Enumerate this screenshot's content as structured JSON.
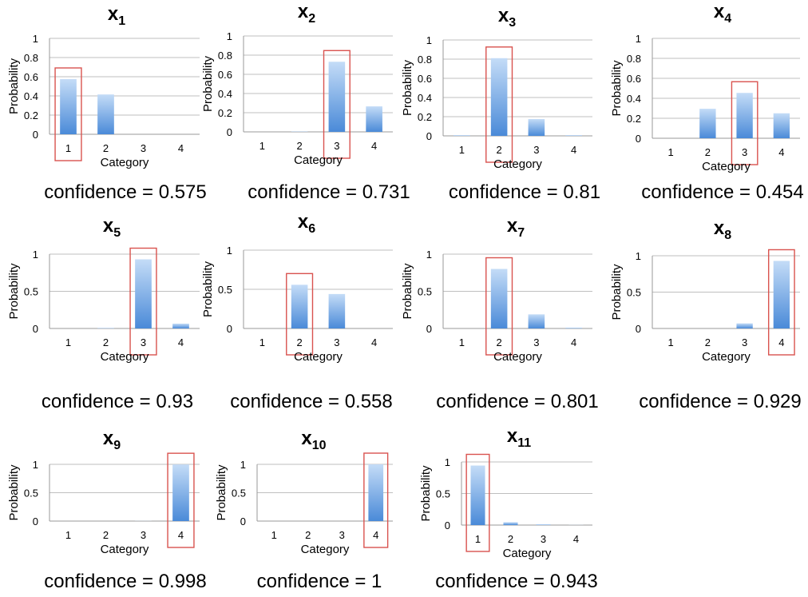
{
  "colors": {
    "bar_top": "#c4dcf7",
    "bar_bottom": "#4a8ad8",
    "highlight": "#d9534f",
    "grid": "#bfbfbf",
    "axis": "#999999"
  },
  "chart_data": [
    {
      "type": "bar",
      "title_base": "x",
      "title_sub": "1",
      "categories": [
        "1",
        "2",
        "3",
        "4"
      ],
      "values": [
        0.575,
        0.415,
        0,
        0
      ],
      "xlabel": "Category",
      "ylabel": "Probability",
      "ylim": [
        0,
        1
      ],
      "yticks": [
        "0",
        "0.2",
        "0.4",
        "0.6",
        "0.8",
        "1"
      ],
      "highlight": 0,
      "grid": true,
      "confidence": "confidence = 0.575"
    },
    {
      "type": "bar",
      "title_base": "x",
      "title_sub": "2",
      "categories": [
        "1",
        "2",
        "3",
        "4"
      ],
      "values": [
        0,
        0.003,
        0.731,
        0.266
      ],
      "xlabel": "Category",
      "ylabel": "Probability",
      "ylim": [
        0,
        1
      ],
      "yticks": [
        "0",
        "0.2",
        "0.4",
        "0.6",
        "0.8",
        "1"
      ],
      "highlight": 2,
      "grid": true,
      "confidence": "confidence = 0.731"
    },
    {
      "type": "bar",
      "title_base": "x",
      "title_sub": "3",
      "categories": [
        "1",
        "2",
        "3",
        "4"
      ],
      "values": [
        0.005,
        0.81,
        0.175,
        0.005
      ],
      "xlabel": "Category",
      "ylabel": "Probability",
      "ylim": [
        0,
        1
      ],
      "yticks": [
        "0",
        "0.2",
        "0.4",
        "0.6",
        "0.8",
        "1"
      ],
      "highlight": 1,
      "grid": true,
      "confidence": "confidence = 0.81"
    },
    {
      "type": "bar",
      "title_base": "x",
      "title_sub": "4",
      "categories": [
        "1",
        "2",
        "3",
        "4"
      ],
      "values": [
        0,
        0.295,
        0.454,
        0.25
      ],
      "xlabel": "Category",
      "ylabel": "Probability",
      "ylim": [
        0,
        1
      ],
      "yticks": [
        "0",
        "0.2",
        "0.4",
        "0.6",
        "0.8",
        "1"
      ],
      "highlight": 2,
      "grid": true,
      "confidence": "confidence = 0.454"
    },
    {
      "type": "bar",
      "title_base": "x",
      "title_sub": "5",
      "categories": [
        "1",
        "2",
        "3",
        "4"
      ],
      "values": [
        0,
        0.005,
        0.93,
        0.065
      ],
      "xlabel": "Category",
      "ylabel": "Probability",
      "ylim": [
        0,
        1
      ],
      "yticks": [
        "0",
        "0.5",
        "1"
      ],
      "highlight": 2,
      "grid": true,
      "confidence": "confidence = 0.93"
    },
    {
      "type": "bar",
      "title_base": "x",
      "title_sub": "6",
      "categories": [
        "1",
        "2",
        "3",
        "4"
      ],
      "values": [
        0,
        0.558,
        0.44,
        0
      ],
      "xlabel": "Category",
      "ylabel": "Probability",
      "ylim": [
        0,
        1
      ],
      "yticks": [
        "0",
        "0.5",
        "1"
      ],
      "highlight": 1,
      "grid": true,
      "confidence": "confidence = 0.558"
    },
    {
      "type": "bar",
      "title_base": "x",
      "title_sub": "7",
      "categories": [
        "1",
        "2",
        "3",
        "4"
      ],
      "values": [
        0,
        0.801,
        0.19,
        0.008
      ],
      "xlabel": "Category",
      "ylabel": "Probability",
      "ylim": [
        0,
        1
      ],
      "yticks": [
        "0",
        "0.5",
        "1"
      ],
      "highlight": 1,
      "grid": true,
      "confidence": "confidence = 0.801"
    },
    {
      "type": "bar",
      "title_base": "x",
      "title_sub": "8",
      "categories": [
        "1",
        "2",
        "3",
        "4"
      ],
      "values": [
        0,
        0,
        0.07,
        0.929
      ],
      "xlabel": "Category",
      "ylabel": "Probability",
      "ylim": [
        0,
        1
      ],
      "yticks": [
        "0",
        "0.5",
        "1"
      ],
      "highlight": 3,
      "grid": true,
      "confidence": "confidence = 0.929"
    },
    {
      "type": "bar",
      "title_base": "x",
      "title_sub": "9",
      "categories": [
        "1",
        "2",
        "3",
        "4"
      ],
      "values": [
        0,
        0,
        0.002,
        0.998
      ],
      "xlabel": "Category",
      "ylabel": "Probability",
      "ylim": [
        0,
        1
      ],
      "yticks": [
        "0",
        "0.5",
        "1"
      ],
      "highlight": 3,
      "grid": true,
      "confidence": "confidence = 0.998"
    },
    {
      "type": "bar",
      "title_base": "x",
      "title_sub": "10",
      "categories": [
        "1",
        "2",
        "3",
        "4"
      ],
      "values": [
        0,
        0,
        0,
        1
      ],
      "xlabel": "Category",
      "ylabel": "Probability",
      "ylim": [
        0,
        1
      ],
      "yticks": [
        "0",
        "0.5",
        "1"
      ],
      "highlight": 3,
      "grid": true,
      "confidence": "confidence = 1"
    },
    {
      "type": "bar",
      "title_base": "x",
      "title_sub": "11",
      "categories": [
        "1",
        "2",
        "3",
        "4"
      ],
      "values": [
        0.943,
        0.045,
        0.01,
        0.002
      ],
      "xlabel": "Category",
      "ylabel": "Probability",
      "ylim": [
        0,
        1
      ],
      "yticks": [
        "0",
        "0.5",
        "1"
      ],
      "highlight": 0,
      "grid": true,
      "confidence": "confidence = 0.943"
    }
  ]
}
